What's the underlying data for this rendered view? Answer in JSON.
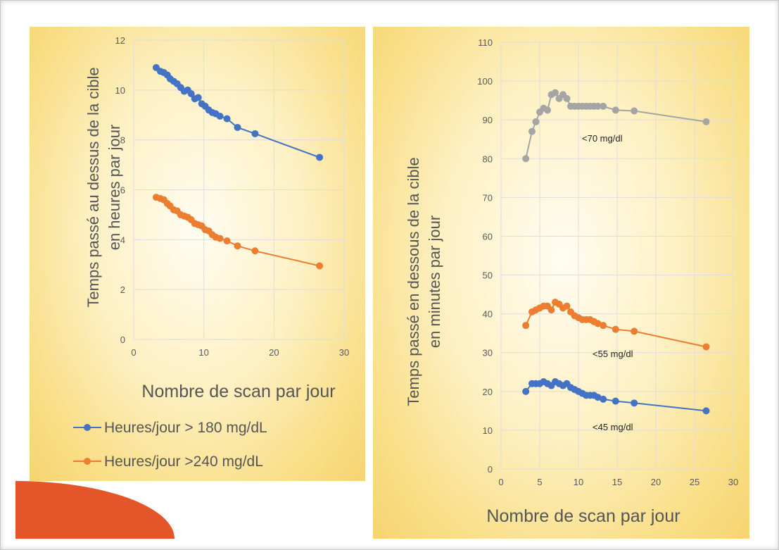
{
  "chart_data": [
    {
      "type": "line",
      "ylabel": [
        "Temps passé au dessus de la cible",
        "en heures par jour"
      ],
      "xlabel": "Nombre de scan par jour",
      "xlim": [
        0,
        30
      ],
      "xticks": [
        0,
        10,
        20,
        30
      ],
      "ylim": [
        0,
        12
      ],
      "yticks": [
        0,
        2,
        4,
        6,
        8,
        10,
        12
      ],
      "grid": true,
      "legend_position": "bottom",
      "series": [
        {
          "name": "Heures/jour > 180 mg/dL",
          "color": "#4472c4",
          "x": [
            3.2,
            3.8,
            4.3,
            4.8,
            5.2,
            5.7,
            6.2,
            6.7,
            7.2,
            7.7,
            8.2,
            8.7,
            9.2,
            9.7,
            10.2,
            10.7,
            11.2,
            11.7,
            12.3,
            13.3,
            14.8,
            17.3,
            26.5
          ],
          "y": [
            10.9,
            10.75,
            10.7,
            10.6,
            10.45,
            10.35,
            10.25,
            10.1,
            9.95,
            10.0,
            9.85,
            9.65,
            9.7,
            9.45,
            9.35,
            9.2,
            9.1,
            9.05,
            8.95,
            8.85,
            8.5,
            8.25,
            7.3
          ]
        },
        {
          "name": "Heures/jour >240 mg/dL",
          "color": "#ed7d31",
          "x": [
            3.2,
            3.8,
            4.3,
            4.8,
            5.2,
            5.7,
            6.2,
            6.7,
            7.2,
            7.7,
            8.2,
            8.7,
            9.2,
            9.7,
            10.2,
            10.7,
            11.2,
            11.7,
            12.3,
            13.3,
            14.8,
            17.3,
            26.5
          ],
          "y": [
            5.7,
            5.65,
            5.6,
            5.45,
            5.35,
            5.2,
            5.15,
            5.0,
            4.95,
            4.9,
            4.8,
            4.65,
            4.6,
            4.55,
            4.4,
            4.35,
            4.2,
            4.1,
            4.05,
            3.95,
            3.75,
            3.55,
            2.95
          ]
        }
      ]
    },
    {
      "type": "line",
      "ylabel": [
        "Temps passé en dessous de la cible",
        "en minutes par jour"
      ],
      "xlabel": "Nombre de scan par jour",
      "xlim": [
        0,
        30
      ],
      "xticks": [
        0,
        5,
        10,
        15,
        20,
        25,
        30
      ],
      "ylim": [
        0,
        110
      ],
      "yticks": [
        0,
        10,
        20,
        30,
        40,
        50,
        60,
        70,
        80,
        90,
        100,
        110
      ],
      "grid": true,
      "series": [
        {
          "name": "<70 mg/dl",
          "color": "#a5a5a5",
          "x": [
            3.2,
            4.0,
            4.5,
            5.0,
            5.5,
            6.0,
            6.5,
            7.0,
            7.5,
            8.0,
            8.5,
            9.0,
            9.5,
            10.0,
            10.5,
            11.0,
            11.5,
            12.0,
            12.5,
            13.2,
            14.8,
            17.2,
            26.5
          ],
          "y": [
            80,
            87,
            89.5,
            92,
            93,
            92.5,
            96.5,
            97,
            95.5,
            96.5,
            95.5,
            93.5,
            93.5,
            93.5,
            93.5,
            93.5,
            93.5,
            93.5,
            93.5,
            93.5,
            92.5,
            92.3,
            89.5
          ]
        },
        {
          "name": "<55 mg/dl",
          "color": "#ed7d31",
          "x": [
            3.2,
            4.0,
            4.5,
            5.0,
            5.5,
            6.0,
            6.5,
            7.0,
            7.5,
            8.0,
            8.5,
            9.0,
            9.5,
            10.0,
            10.5,
            11.0,
            11.5,
            12.0,
            12.5,
            13.2,
            14.8,
            17.2,
            26.5
          ],
          "y": [
            37,
            40.5,
            41,
            41.5,
            42,
            42,
            41,
            43,
            42.5,
            41.5,
            42,
            40.5,
            39.5,
            39,
            38.5,
            38.5,
            38.5,
            38,
            37.5,
            37,
            36,
            35.5,
            31.5
          ]
        },
        {
          "name": "<45 mg/dl",
          "color": "#4472c4",
          "x": [
            3.2,
            4.0,
            4.5,
            5.0,
            5.5,
            6.0,
            6.5,
            7.0,
            7.5,
            8.0,
            8.5,
            9.0,
            9.5,
            10.0,
            10.5,
            11.0,
            11.5,
            12.0,
            12.5,
            13.2,
            14.8,
            17.2,
            26.5
          ],
          "y": [
            20,
            22,
            22,
            22,
            22.5,
            22,
            21.5,
            22.5,
            22,
            21.5,
            22,
            21,
            20.5,
            20,
            19.5,
            19,
            19,
            19,
            18.5,
            18,
            17.5,
            17,
            15
          ]
        }
      ]
    }
  ]
}
